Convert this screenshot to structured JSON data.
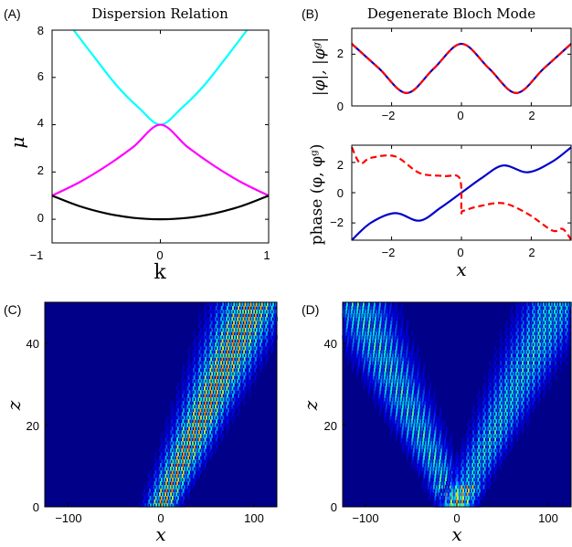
{
  "chart_data": [
    {
      "panel": "(A)",
      "type": "line",
      "title": "Dispersion Relation",
      "xlabel": "k",
      "ylabel": "μ",
      "xlim": [
        -1,
        1
      ],
      "ylim": [
        -1,
        8
      ],
      "xticks": [
        "−1",
        "0",
        "1"
      ],
      "yticks": [
        "0",
        "2",
        "4",
        "6",
        "8"
      ],
      "series": [
        {
          "color": "#00ffff",
          "x": [
            -0.8,
            -0.6,
            -0.4,
            -0.2,
            0.0,
            0.2,
            0.4,
            0.6,
            0.8
          ],
          "y": [
            8.0,
            6.8,
            5.64,
            4.72,
            4.0,
            4.72,
            5.64,
            6.8,
            8.0
          ]
        },
        {
          "color": "#ff00ff",
          "x": [
            -1.0,
            -0.75,
            -0.5,
            -0.25,
            0.0,
            0.25,
            0.5,
            0.75,
            1.0
          ],
          "y": [
            1.0,
            1.56,
            2.25,
            3.06,
            4.0,
            3.06,
            2.25,
            1.56,
            1.0
          ]
        },
        {
          "color": "#000000",
          "x": [
            -1.0,
            -0.75,
            -0.5,
            -0.25,
            0.0,
            0.25,
            0.5,
            0.75,
            1.0
          ],
          "y": [
            1.0,
            0.56,
            0.25,
            0.06,
            0.0,
            0.06,
            0.25,
            0.56,
            1.0
          ]
        }
      ]
    },
    {
      "panel": "(B)",
      "type": "line",
      "title": "Degenerate Bloch Mode",
      "ylabel": "|φ|, |φᵍ|",
      "xlim": [
        -3.14,
        3.14
      ],
      "ylim": [
        0,
        3
      ],
      "xticks": [
        "−2",
        "0",
        "2"
      ],
      "yticks": [
        "0",
        "2"
      ],
      "series": [
        {
          "color": "#0000cc",
          "style": "solid",
          "x": [
            -3.14,
            -2.36,
            -1.57,
            -0.79,
            0.0,
            0.79,
            1.57,
            2.36,
            3.14
          ],
          "y": [
            2.4,
            1.45,
            0.5,
            1.45,
            2.4,
            1.45,
            0.5,
            1.45,
            2.4
          ]
        },
        {
          "color": "#ff0000",
          "style": "dashed",
          "x": [
            -3.14,
            -2.36,
            -1.57,
            -0.79,
            0.0,
            0.79,
            1.57,
            2.36,
            3.14
          ],
          "y": [
            2.4,
            1.45,
            0.5,
            1.45,
            2.4,
            1.45,
            0.5,
            1.45,
            2.4
          ]
        }
      ]
    },
    {
      "type": "line",
      "xlabel": "x",
      "ylabel": "phase (φ, φᵍ)",
      "xlim": [
        -3.14,
        3.14
      ],
      "ylim": [
        -3.14,
        3.14
      ],
      "xticks": [
        "−2",
        "0",
        "2"
      ],
      "yticks": [
        "−2",
        "0",
        "2"
      ],
      "series": [
        {
          "color": "#0000cc",
          "style": "solid",
          "x": [
            -3.14,
            -2.6,
            -1.9,
            -1.2,
            -0.6,
            0.0,
            0.6,
            1.2,
            1.9,
            2.6,
            3.14
          ],
          "y": [
            -3.14,
            -2.0,
            -1.35,
            -1.85,
            -1.0,
            0.0,
            1.0,
            1.8,
            1.35,
            2.05,
            3.0
          ]
        },
        {
          "color": "#ff0000",
          "style": "dashed",
          "x": [
            -3.14,
            -2.9,
            -2.6,
            -1.9,
            -1.2,
            -0.5,
            -0.05,
            0.0,
            0.05,
            0.5,
            1.2,
            1.9,
            2.6,
            2.9,
            3.14
          ],
          "y": [
            3.0,
            1.95,
            2.3,
            2.4,
            1.3,
            1.1,
            0.95,
            -1.2,
            -1.2,
            -0.9,
            -0.7,
            -1.4,
            -2.5,
            -2.4,
            -3.1
          ]
        }
      ]
    },
    {
      "panel": "(C)",
      "type": "heatmap",
      "xlabel": "x",
      "ylabel": "z",
      "xlim": [
        -125,
        125
      ],
      "ylim": [
        0,
        50
      ],
      "xticks": [
        "−100",
        "0",
        "100"
      ],
      "yticks": [
        "0",
        "20",
        "40"
      ],
      "beams": [
        {
          "x0": 0,
          "slope": 2.0
        }
      ]
    },
    {
      "panel": "(D)",
      "type": "heatmap",
      "xlabel": "x",
      "ylabel": "z",
      "xlim": [
        -125,
        125
      ],
      "ylim": [
        0,
        50
      ],
      "xticks": [
        "−100",
        "0",
        "100"
      ],
      "yticks": [
        "0",
        "20",
        "40"
      ],
      "beams": [
        {
          "x0": 0,
          "slope": -2.2
        },
        {
          "x0": 0,
          "slope": 2.2
        }
      ]
    }
  ],
  "colors": {
    "background": "#000088",
    "peak": "#ff8800"
  }
}
